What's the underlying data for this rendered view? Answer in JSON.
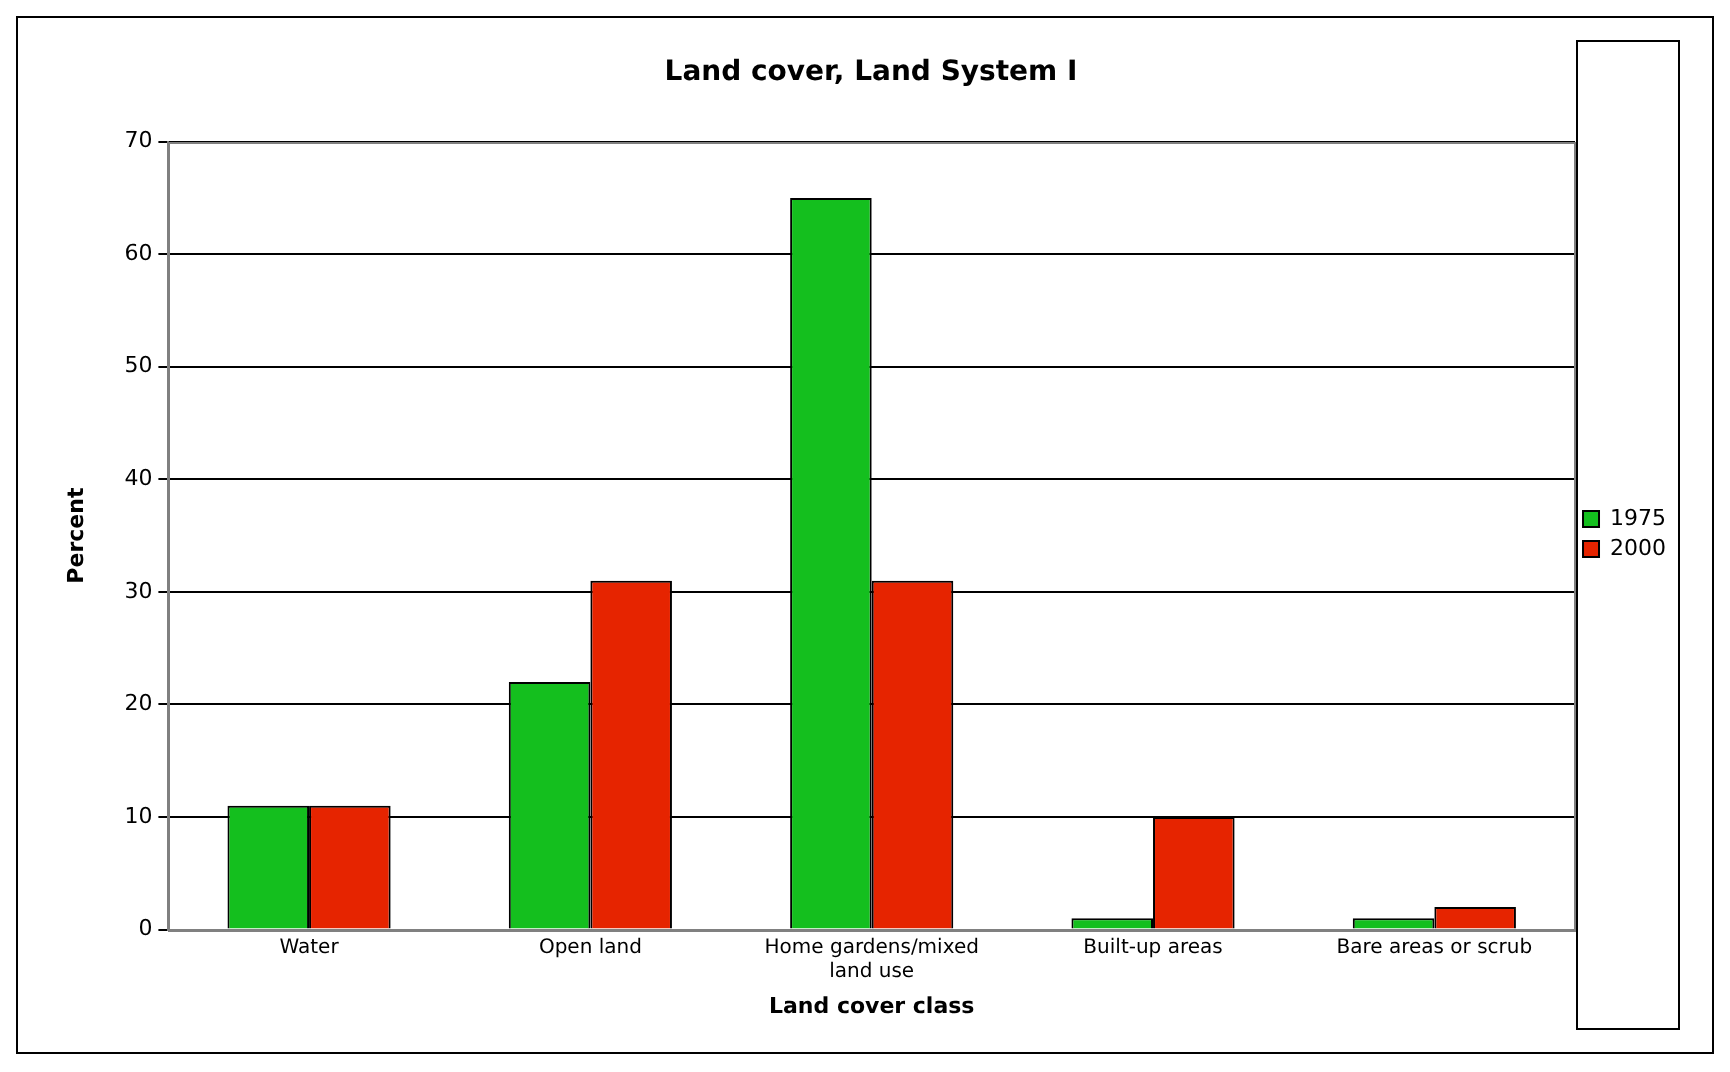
{
  "chart_data": {
    "type": "bar",
    "title": "Land cover, Land System I",
    "xlabel": "Land cover class",
    "ylabel": "Percent",
    "categories": [
      "Water",
      "Open land",
      "Home gardens/mixed land use",
      "Built-up areas",
      "Bare areas or scrub"
    ],
    "series": [
      {
        "name": "1975",
        "color": "#14bf1e",
        "values": [
          11,
          22,
          65,
          1,
          1
        ]
      },
      {
        "name": "2000",
        "color": "#e62400",
        "values": [
          11,
          31,
          31,
          10,
          2
        ]
      }
    ],
    "ylim": [
      0,
      70
    ],
    "yticks": [
      0,
      10,
      20,
      30,
      40,
      50,
      60,
      70
    ],
    "grid": "y",
    "legend": "right"
  }
}
